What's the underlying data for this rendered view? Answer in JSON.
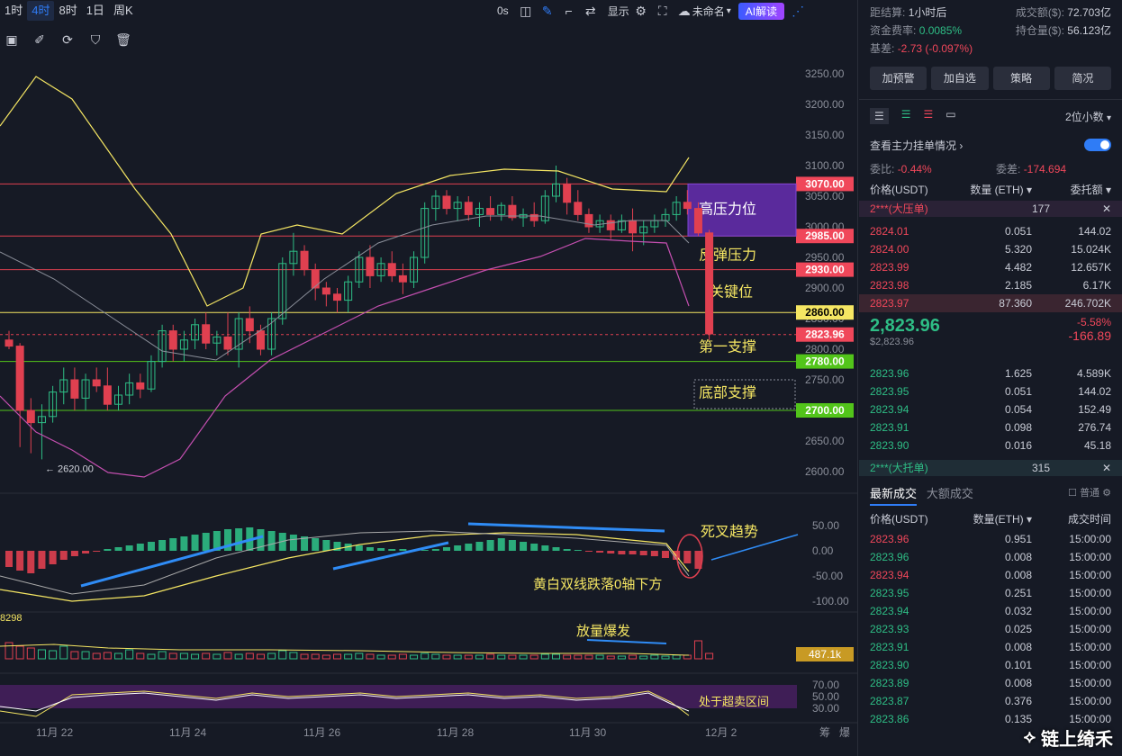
{
  "toolbar": {
    "timeframes": [
      "1时",
      "4时",
      "8时",
      "1日",
      "周K"
    ],
    "active_timeframe": "4时",
    "zero_label": "0s",
    "display_label": "显示",
    "layout_name": "未命名",
    "ai_label": "AI解读"
  },
  "price_axis": {
    "ticks": [
      "3250.00",
      "3200.00",
      "3150.00",
      "3100.00",
      "3050.00",
      "3000.00",
      "2950.00",
      "2900.00",
      "2850.00",
      "2800.00",
      "2750.00",
      "2700.00",
      "2650.00",
      "2600.00"
    ],
    "tick_values": [
      3250,
      3200,
      3150,
      3100,
      3050,
      3000,
      2950,
      2900,
      2850,
      2800,
      2750,
      2700,
      2650,
      2600
    ],
    "level_tags": [
      {
        "label": "3070.00",
        "value": 3070,
        "color": "#f0475a"
      },
      {
        "label": "2985.00",
        "value": 2985,
        "color": "#f0475a"
      },
      {
        "label": "2930.00",
        "value": 2930,
        "color": "#f0475a"
      },
      {
        "label": "2860.00",
        "value": 2860,
        "color": "#f5e663"
      },
      {
        "label": "2823.96",
        "value": 2823.96,
        "color": "#f0475a"
      },
      {
        "label": "2780.00",
        "value": 2780,
        "color": "#52c41a"
      },
      {
        "label": "2700.00",
        "value": 2700,
        "color": "#52c41a"
      }
    ]
  },
  "annotations": {
    "high_pressure": "高压力位",
    "rebound_pressure": "反弹压力",
    "key_level": "关键位",
    "first_support": "第一支撑",
    "bottom_support": "底部支撑",
    "low_marker": "← 2620.00",
    "death_cross": "死叉趋势",
    "lines_below_zero": "黄白双线跌落0轴下方",
    "volume_burst": "放量爆发",
    "oversold": "处于超卖区间"
  },
  "macd_axis": [
    "50.00",
    "0.00",
    "-50.00",
    "-100.00"
  ],
  "volume": {
    "left_label": "8298",
    "current": "487.1k"
  },
  "rsi_axis": [
    "70.00",
    "50.00",
    "30.00"
  ],
  "x_axis": [
    "11月 22",
    "11月 24",
    "11月 26",
    "11月 28",
    "11月 30",
    "12月 2"
  ],
  "x_axis_right": [
    "筹",
    "爆"
  ],
  "side": {
    "funding_settle_label": "距结算:",
    "funding_settle_value": "1小时后",
    "funding_rate_label": "资金费率:",
    "funding_rate_value": "0.0085%",
    "basis_label": "基差:",
    "basis_value": "-2.73 (-0.097%)",
    "turnover_label": "成交额($):",
    "turnover_value": "72.703亿",
    "open_interest_label": "持仓量($):",
    "open_interest_value": "56.123亿",
    "buttons": [
      "加预警",
      "加自选",
      "策略",
      "简况"
    ],
    "decimals": "2位小数",
    "main_orders_label": "查看主力挂单情况",
    "ratio_label": "委比:",
    "ratio_value": "-0.44%",
    "diff_label": "委差:",
    "diff_value": "-174.694",
    "col_price": "价格(USDT)",
    "col_qty": "数量 (ETH)",
    "col_total": "委托额",
    "big_ask_label": "2***(大压单)",
    "big_ask_value": "177",
    "asks": [
      {
        "p": "2824.01",
        "q": "0.051",
        "t": "144.02"
      },
      {
        "p": "2824.00",
        "q": "5.320",
        "t": "15.024K"
      },
      {
        "p": "2823.99",
        "q": "4.482",
        "t": "12.657K"
      },
      {
        "p": "2823.98",
        "q": "2.185",
        "t": "6.17K"
      },
      {
        "p": "2823.97",
        "q": "87.360",
        "t": "246.702K"
      }
    ],
    "last_price": "2,823.96",
    "last_price_usd": "$2,823.96",
    "change_pct": "-5.58%",
    "change_abs": "-166.89",
    "bids": [
      {
        "p": "2823.96",
        "q": "1.625",
        "t": "4.589K"
      },
      {
        "p": "2823.95",
        "q": "0.051",
        "t": "144.02"
      },
      {
        "p": "2823.94",
        "q": "0.054",
        "t": "152.49"
      },
      {
        "p": "2823.91",
        "q": "0.098",
        "t": "276.74"
      },
      {
        "p": "2823.90",
        "q": "0.016",
        "t": "45.18"
      }
    ],
    "big_bid_label": "2***(大托单)",
    "big_bid_value": "315",
    "trades_tab": "最新成交",
    "big_trades_tab": "大额成交",
    "normal_label": "普通",
    "trade_col_price": "价格(USDT)",
    "trade_col_qty": "数量(ETH)",
    "trade_col_time": "成交时间",
    "trades": [
      {
        "p": "2823.96",
        "q": "0.951",
        "t": "15:00:00",
        "side": "sell"
      },
      {
        "p": "2823.96",
        "q": "0.008",
        "t": "15:00:00",
        "side": "buy"
      },
      {
        "p": "2823.94",
        "q": "0.008",
        "t": "15:00:00",
        "side": "sell"
      },
      {
        "p": "2823.95",
        "q": "0.251",
        "t": "15:00:00",
        "side": "buy"
      },
      {
        "p": "2823.94",
        "q": "0.032",
        "t": "15:00:00",
        "side": "buy"
      },
      {
        "p": "2823.93",
        "q": "0.025",
        "t": "15:00:00",
        "side": "buy"
      },
      {
        "p": "2823.91",
        "q": "0.008",
        "t": "15:00:00",
        "side": "buy"
      },
      {
        "p": "2823.90",
        "q": "0.101",
        "t": "15:00:00",
        "side": "buy"
      },
      {
        "p": "2823.89",
        "q": "0.008",
        "t": "15:00:00",
        "side": "buy"
      },
      {
        "p": "2823.87",
        "q": "0.376",
        "t": "15:00:00",
        "side": "buy"
      },
      {
        "p": "2823.86",
        "q": "0.135",
        "t": "15:00:00",
        "side": "buy"
      }
    ],
    "brand": "链上绮禾"
  },
  "chart_data": {
    "type": "candlestick",
    "candles": [
      {
        "o": 2815,
        "h": 2830,
        "l": 2800,
        "c": 2805
      },
      {
        "o": 2805,
        "h": 2810,
        "l": 2640,
        "c": 2700
      },
      {
        "o": 2700,
        "h": 2720,
        "l": 2630,
        "c": 2680
      },
      {
        "o": 2680,
        "h": 2710,
        "l": 2620,
        "c": 2690
      },
      {
        "o": 2690,
        "h": 2740,
        "l": 2680,
        "c": 2730
      },
      {
        "o": 2730,
        "h": 2770,
        "l": 2710,
        "c": 2750
      },
      {
        "o": 2750,
        "h": 2770,
        "l": 2700,
        "c": 2720
      },
      {
        "o": 2720,
        "h": 2760,
        "l": 2700,
        "c": 2750
      },
      {
        "o": 2750,
        "h": 2770,
        "l": 2730,
        "c": 2740
      },
      {
        "o": 2740,
        "h": 2770,
        "l": 2700,
        "c": 2710
      },
      {
        "o": 2710,
        "h": 2740,
        "l": 2700,
        "c": 2725
      },
      {
        "o": 2725,
        "h": 2760,
        "l": 2710,
        "c": 2745
      },
      {
        "o": 2745,
        "h": 2760,
        "l": 2720,
        "c": 2735
      },
      {
        "o": 2735,
        "h": 2790,
        "l": 2730,
        "c": 2780
      },
      {
        "o": 2780,
        "h": 2840,
        "l": 2770,
        "c": 2830
      },
      {
        "o": 2830,
        "h": 2840,
        "l": 2780,
        "c": 2800
      },
      {
        "o": 2800,
        "h": 2830,
        "l": 2780,
        "c": 2815
      },
      {
        "o": 2815,
        "h": 2850,
        "l": 2800,
        "c": 2840
      },
      {
        "o": 2840,
        "h": 2860,
        "l": 2800,
        "c": 2810
      },
      {
        "o": 2810,
        "h": 2830,
        "l": 2790,
        "c": 2820
      },
      {
        "o": 2820,
        "h": 2860,
        "l": 2790,
        "c": 2800
      },
      {
        "o": 2800,
        "h": 2860,
        "l": 2770,
        "c": 2850
      },
      {
        "o": 2850,
        "h": 2870,
        "l": 2810,
        "c": 2830
      },
      {
        "o": 2830,
        "h": 2840,
        "l": 2790,
        "c": 2800
      },
      {
        "o": 2800,
        "h": 2860,
        "l": 2790,
        "c": 2850
      },
      {
        "o": 2850,
        "h": 2950,
        "l": 2840,
        "c": 2940
      },
      {
        "o": 2940,
        "h": 2990,
        "l": 2920,
        "c": 2960
      },
      {
        "o": 2960,
        "h": 2970,
        "l": 2920,
        "c": 2930
      },
      {
        "o": 2930,
        "h": 2940,
        "l": 2880,
        "c": 2900
      },
      {
        "o": 2900,
        "h": 2910,
        "l": 2870,
        "c": 2890
      },
      {
        "o": 2890,
        "h": 2900,
        "l": 2860,
        "c": 2880
      },
      {
        "o": 2880,
        "h": 2920,
        "l": 2860,
        "c": 2910
      },
      {
        "o": 2910,
        "h": 2960,
        "l": 2900,
        "c": 2950
      },
      {
        "o": 2950,
        "h": 2970,
        "l": 2900,
        "c": 2920
      },
      {
        "o": 2920,
        "h": 2950,
        "l": 2910,
        "c": 2940
      },
      {
        "o": 2940,
        "h": 2960,
        "l": 2910,
        "c": 2920
      },
      {
        "o": 2920,
        "h": 2940,
        "l": 2890,
        "c": 2910
      },
      {
        "o": 2910,
        "h": 2960,
        "l": 2900,
        "c": 2950
      },
      {
        "o": 2950,
        "h": 3040,
        "l": 2940,
        "c": 3030
      },
      {
        "o": 3030,
        "h": 3060,
        "l": 3010,
        "c": 3050
      },
      {
        "o": 3050,
        "h": 3060,
        "l": 3020,
        "c": 3030
      },
      {
        "o": 3030,
        "h": 3050,
        "l": 3010,
        "c": 3040
      },
      {
        "o": 3040,
        "h": 3050,
        "l": 3010,
        "c": 3020
      },
      {
        "o": 3020,
        "h": 3040,
        "l": 3000,
        "c": 3030
      },
      {
        "o": 3030,
        "h": 3050,
        "l": 3010,
        "c": 3020
      },
      {
        "o": 3020,
        "h": 3040,
        "l": 3010,
        "c": 3035
      },
      {
        "o": 3035,
        "h": 3050,
        "l": 3010,
        "c": 3015
      },
      {
        "o": 3015,
        "h": 3030,
        "l": 3000,
        "c": 3020
      },
      {
        "o": 3020,
        "h": 3040,
        "l": 3000,
        "c": 3010
      },
      {
        "o": 3010,
        "h": 3060,
        "l": 3005,
        "c": 3050
      },
      {
        "o": 3050,
        "h": 3100,
        "l": 3040,
        "c": 3070
      },
      {
        "o": 3070,
        "h": 3080,
        "l": 3020,
        "c": 3040
      },
      {
        "o": 3040,
        "h": 3060,
        "l": 3010,
        "c": 3020
      },
      {
        "o": 3020,
        "h": 3030,
        "l": 2990,
        "c": 3000
      },
      {
        "o": 3000,
        "h": 3020,
        "l": 2990,
        "c": 3010
      },
      {
        "o": 3010,
        "h": 3020,
        "l": 2980,
        "c": 2995
      },
      {
        "o": 2995,
        "h": 3020,
        "l": 2990,
        "c": 3010
      },
      {
        "o": 3010,
        "h": 3030,
        "l": 2960,
        "c": 2990
      },
      {
        "o": 2990,
        "h": 3010,
        "l": 2970,
        "c": 3000
      },
      {
        "o": 3000,
        "h": 3020,
        "l": 2990,
        "c": 3010
      },
      {
        "o": 3010,
        "h": 3030,
        "l": 3000,
        "c": 3020
      },
      {
        "o": 3020,
        "h": 3050,
        "l": 3010,
        "c": 3040
      },
      {
        "o": 3040,
        "h": 3060,
        "l": 3020,
        "c": 3030
      },
      {
        "o": 3030,
        "h": 3040,
        "l": 2985,
        "c": 2990
      },
      {
        "o": 2990,
        "h": 2995,
        "l": 2815,
        "c": 2825
      }
    ],
    "last_price": 2823.96
  }
}
